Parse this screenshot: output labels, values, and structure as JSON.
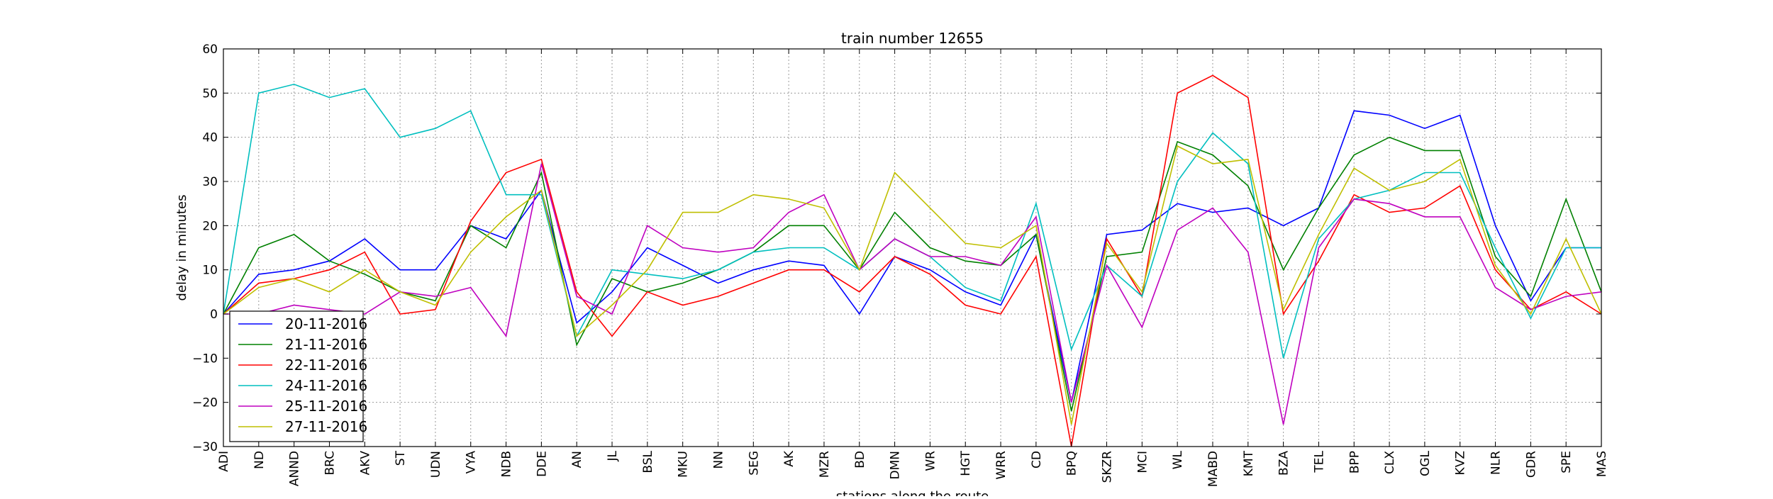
{
  "chart_data": {
    "type": "line",
    "title": "train number 12655",
    "xlabel": "stations along the route",
    "ylabel": "delay in minutes",
    "ylim": [
      -30,
      60
    ],
    "yticks": [
      -30,
      -20,
      -10,
      0,
      10,
      20,
      30,
      40,
      50,
      60
    ],
    "ytick_labels": [
      "−30",
      "−20",
      "−10",
      "0",
      "10",
      "20",
      "30",
      "40",
      "50",
      "60"
    ],
    "grid": true,
    "legend_placement": "lower-left",
    "categories": [
      "ADI",
      "ND",
      "ANND",
      "BRC",
      "AKV",
      "ST",
      "UDN",
      "VYA",
      "NDB",
      "DDE",
      "AN",
      "JL",
      "BSL",
      "MKU",
      "NN",
      "SEG",
      "AK",
      "MZR",
      "BD",
      "DMN",
      "WR",
      "HGT",
      "WRR",
      "CD",
      "BPQ",
      "SKZR",
      "MCI",
      "WL",
      "MABD",
      "KMT",
      "BZA",
      "TEL",
      "BPP",
      "CLX",
      "OGL",
      "KVZ",
      "NLR",
      "GDR",
      "SPE",
      "MAS"
    ],
    "series": [
      {
        "name": "20-11-2016",
        "color": "#0000ff",
        "values": [
          0,
          9,
          10,
          12,
          17,
          10,
          10,
          20,
          17,
          28,
          -2,
          5,
          15,
          11,
          7,
          10,
          12,
          11,
          0,
          13,
          10,
          5,
          2,
          18,
          -20,
          18,
          19,
          25,
          23,
          24,
          20,
          24,
          46,
          45,
          42,
          45,
          20,
          3,
          15,
          15
        ]
      },
      {
        "name": "21-11-2016",
        "color": "#008000",
        "values": [
          0,
          15,
          18,
          12,
          9,
          5,
          3,
          20,
          15,
          32,
          -7,
          8,
          5,
          7,
          10,
          14,
          20,
          20,
          10,
          23,
          15,
          12,
          11,
          18,
          -22,
          13,
          14,
          39,
          36,
          29,
          10,
          24,
          36,
          40,
          37,
          37,
          13,
          4,
          26,
          5
        ]
      },
      {
        "name": "22-11-2016",
        "color": "#ff0000",
        "values": [
          0,
          7,
          8,
          10,
          14,
          0,
          1,
          21,
          32,
          35,
          5,
          -5,
          5,
          2,
          4,
          7,
          10,
          10,
          5,
          13,
          9,
          2,
          0,
          13,
          -30,
          17,
          4,
          50,
          54,
          49,
          0,
          12,
          27,
          23,
          24,
          29,
          10,
          1,
          5,
          0
        ]
      },
      {
        "name": "24-11-2016",
        "color": "#00bfbf",
        "values": [
          0,
          50,
          52,
          49,
          51,
          40,
          42,
          46,
          27,
          27,
          -5,
          10,
          9,
          8,
          10,
          14,
          15,
          15,
          10,
          17,
          13,
          6,
          3,
          25,
          -8,
          11,
          4,
          30,
          41,
          34,
          -10,
          17,
          26,
          28,
          32,
          32,
          15,
          -1,
          15,
          15
        ]
      },
      {
        "name": "25-11-2016",
        "color": "#bf00bf",
        "values": [
          0,
          0,
          2,
          1,
          0,
          5,
          4,
          6,
          -5,
          34,
          4,
          0,
          20,
          15,
          14,
          15,
          23,
          27,
          10,
          17,
          13,
          13,
          11,
          22,
          -20,
          11,
          -3,
          19,
          24,
          14,
          -25,
          15,
          26,
          25,
          22,
          22,
          6,
          1,
          4,
          5
        ]
      },
      {
        "name": "27-11-2016",
        "color": "#bfbf00",
        "values": [
          0,
          6,
          8,
          5,
          10,
          5,
          2,
          14,
          22,
          28,
          -5,
          2,
          10,
          23,
          23,
          27,
          26,
          24,
          10,
          32,
          24,
          16,
          15,
          20,
          -25,
          16,
          5,
          38,
          34,
          35,
          1,
          18,
          33,
          28,
          30,
          35,
          11,
          0,
          17,
          0
        ]
      }
    ]
  }
}
